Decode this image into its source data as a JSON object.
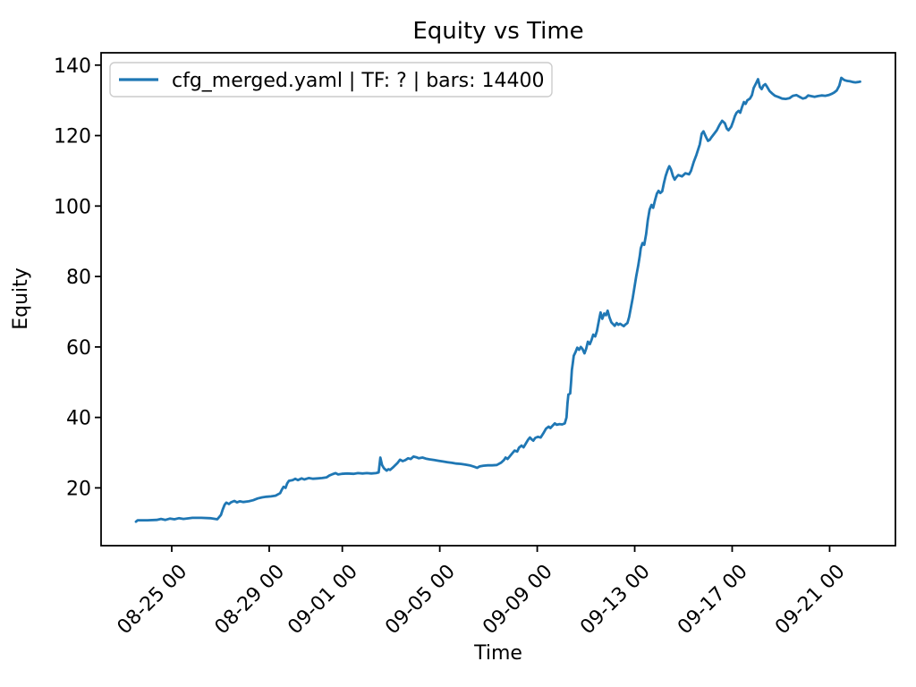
{
  "figure": {
    "title": "Equity vs Time",
    "xlabel": "Time",
    "ylabel": "Equity"
  },
  "legend": {
    "label": "cfg_merged.yaml | TF: ? | bars: 14400",
    "position": "upper left",
    "line_color": "#1f77b4",
    "border_color": "#cccccc",
    "background": "#ffffff"
  },
  "colors": {
    "line": "#1f77b4",
    "axes": "#000000",
    "figure_background": "#ffffff"
  },
  "chart_data": {
    "type": "line",
    "title": "Equity vs Time",
    "xlabel": "Time",
    "ylabel": "Equity",
    "grid": false,
    "legend_position": "upper left",
    "x_units": "days (0 = 08-23 00:00)",
    "xlim": [
      -0.9,
      31.7
    ],
    "ylim": [
      3.6,
      143.5
    ],
    "y_ticks": [
      20,
      40,
      60,
      80,
      100,
      120,
      140
    ],
    "x_ticks": [
      {
        "t": 2,
        "label": "08-25 00"
      },
      {
        "t": 6,
        "label": "08-29 00"
      },
      {
        "t": 9,
        "label": "09-01 00"
      },
      {
        "t": 13,
        "label": "09-05 00"
      },
      {
        "t": 17,
        "label": "09-09 00"
      },
      {
        "t": 21,
        "label": "09-13 00"
      },
      {
        "t": 25,
        "label": "09-17 00"
      },
      {
        "t": 29,
        "label": "09-21 00"
      }
    ],
    "series": [
      {
        "name": "cfg_merged.yaml | TF: ? | bars: 14400",
        "color": "#1f77b4",
        "points": [
          [
            0.53,
            10.4
          ],
          [
            0.6,
            10.8
          ],
          [
            1.0,
            10.8
          ],
          [
            1.38,
            10.9
          ],
          [
            1.56,
            11.2
          ],
          [
            1.74,
            10.9
          ],
          [
            1.93,
            11.3
          ],
          [
            2.11,
            11.1
          ],
          [
            2.29,
            11.4
          ],
          [
            2.48,
            11.2
          ],
          [
            2.85,
            11.5
          ],
          [
            3.21,
            11.5
          ],
          [
            3.58,
            11.4
          ],
          [
            3.87,
            11.1
          ],
          [
            4.02,
            12.3
          ],
          [
            4.09,
            13.8
          ],
          [
            4.17,
            15.2
          ],
          [
            4.24,
            15.8
          ],
          [
            4.35,
            15.4
          ],
          [
            4.43,
            15.9
          ],
          [
            4.57,
            16.3
          ],
          [
            4.68,
            15.9
          ],
          [
            4.79,
            16.2
          ],
          [
            4.94,
            16.0
          ],
          [
            5.16,
            16.2
          ],
          [
            5.34,
            16.5
          ],
          [
            5.53,
            17.0
          ],
          [
            5.71,
            17.3
          ],
          [
            5.89,
            17.5
          ],
          [
            6.08,
            17.6
          ],
          [
            6.26,
            17.8
          ],
          [
            6.45,
            18.5
          ],
          [
            6.52,
            19.5
          ],
          [
            6.59,
            20.3
          ],
          [
            6.67,
            20.0
          ],
          [
            6.74,
            21.3
          ],
          [
            6.81,
            22.0
          ],
          [
            6.96,
            22.2
          ],
          [
            7.07,
            22.6
          ],
          [
            7.18,
            22.2
          ],
          [
            7.33,
            22.7
          ],
          [
            7.44,
            22.4
          ],
          [
            7.62,
            22.8
          ],
          [
            7.8,
            22.6
          ],
          [
            7.99,
            22.7
          ],
          [
            8.17,
            22.8
          ],
          [
            8.36,
            23.0
          ],
          [
            8.47,
            23.5
          ],
          [
            8.61,
            23.9
          ],
          [
            8.72,
            24.2
          ],
          [
            8.83,
            23.8
          ],
          [
            8.98,
            24.0
          ],
          [
            9.2,
            24.1
          ],
          [
            9.46,
            24.0
          ],
          [
            9.64,
            24.2
          ],
          [
            9.83,
            24.1
          ],
          [
            10.01,
            24.2
          ],
          [
            10.19,
            24.1
          ],
          [
            10.38,
            24.2
          ],
          [
            10.49,
            24.4
          ],
          [
            10.56,
            28.6
          ],
          [
            10.63,
            26.5
          ],
          [
            10.71,
            25.6
          ],
          [
            10.82,
            24.9
          ],
          [
            10.89,
            25.3
          ],
          [
            10.96,
            25.1
          ],
          [
            11.11,
            26.0
          ],
          [
            11.26,
            27.0
          ],
          [
            11.37,
            28.0
          ],
          [
            11.48,
            27.6
          ],
          [
            11.59,
            27.9
          ],
          [
            11.7,
            28.4
          ],
          [
            11.81,
            28.2
          ],
          [
            11.92,
            28.9
          ],
          [
            12.03,
            28.7
          ],
          [
            12.14,
            28.4
          ],
          [
            12.29,
            28.6
          ],
          [
            12.43,
            28.3
          ],
          [
            12.58,
            28.1
          ],
          [
            12.77,
            27.9
          ],
          [
            12.95,
            27.7
          ],
          [
            13.13,
            27.5
          ],
          [
            13.32,
            27.3
          ],
          [
            13.5,
            27.1
          ],
          [
            13.68,
            26.9
          ],
          [
            13.87,
            26.8
          ],
          [
            14.05,
            26.6
          ],
          [
            14.23,
            26.4
          ],
          [
            14.42,
            26.0
          ],
          [
            14.53,
            25.7
          ],
          [
            14.64,
            26.1
          ],
          [
            14.79,
            26.3
          ],
          [
            14.97,
            26.4
          ],
          [
            15.15,
            26.4
          ],
          [
            15.34,
            26.5
          ],
          [
            15.52,
            27.2
          ],
          [
            15.63,
            27.9
          ],
          [
            15.7,
            28.6
          ],
          [
            15.78,
            28.2
          ],
          [
            15.89,
            29.1
          ],
          [
            16.0,
            30.0
          ],
          [
            16.07,
            30.6
          ],
          [
            16.18,
            30.3
          ],
          [
            16.25,
            31.4
          ],
          [
            16.36,
            32.0
          ],
          [
            16.44,
            31.5
          ],
          [
            16.55,
            32.8
          ],
          [
            16.62,
            33.6
          ],
          [
            16.7,
            34.3
          ],
          [
            16.77,
            33.8
          ],
          [
            16.84,
            33.4
          ],
          [
            16.92,
            34.2
          ],
          [
            17.03,
            34.5
          ],
          [
            17.14,
            34.3
          ],
          [
            17.25,
            35.5
          ],
          [
            17.36,
            36.8
          ],
          [
            17.47,
            37.4
          ],
          [
            17.54,
            37.0
          ],
          [
            17.65,
            37.8
          ],
          [
            17.72,
            38.3
          ],
          [
            17.8,
            37.9
          ],
          [
            17.91,
            38.1
          ],
          [
            18.02,
            38.0
          ],
          [
            18.13,
            38.3
          ],
          [
            18.2,
            40.0
          ],
          [
            18.24,
            44.0
          ],
          [
            18.28,
            46.5
          ],
          [
            18.35,
            46.8
          ],
          [
            18.39,
            50.0
          ],
          [
            18.42,
            53.5
          ],
          [
            18.46,
            55.5
          ],
          [
            18.5,
            57.5
          ],
          [
            18.57,
            58.5
          ],
          [
            18.64,
            59.8
          ],
          [
            18.72,
            59.2
          ],
          [
            18.79,
            60.0
          ],
          [
            18.86,
            59.4
          ],
          [
            18.94,
            58.2
          ],
          [
            19.01,
            59.5
          ],
          [
            19.08,
            61.5
          ],
          [
            19.16,
            60.8
          ],
          [
            19.23,
            62.0
          ],
          [
            19.3,
            63.5
          ],
          [
            19.38,
            63.0
          ],
          [
            19.45,
            64.5
          ],
          [
            19.49,
            66.0
          ],
          [
            19.56,
            68.5
          ],
          [
            19.6,
            69.8
          ],
          [
            19.67,
            68.0
          ],
          [
            19.75,
            69.5
          ],
          [
            19.82,
            69.0
          ],
          [
            19.89,
            70.3
          ],
          [
            19.96,
            68.5
          ],
          [
            20.04,
            67.0
          ],
          [
            20.11,
            66.5
          ],
          [
            20.18,
            66.0
          ],
          [
            20.26,
            66.8
          ],
          [
            20.33,
            66.3
          ],
          [
            20.4,
            66.6
          ],
          [
            20.48,
            66.2
          ],
          [
            20.55,
            65.9
          ],
          [
            20.62,
            66.4
          ],
          [
            20.7,
            66.8
          ],
          [
            20.77,
            68.5
          ],
          [
            20.84,
            71.0
          ],
          [
            20.92,
            74.0
          ],
          [
            20.99,
            77.0
          ],
          [
            21.06,
            80.0
          ],
          [
            21.14,
            83.0
          ],
          [
            21.21,
            86.0
          ],
          [
            21.25,
            88.0
          ],
          [
            21.32,
            89.5
          ],
          [
            21.39,
            89.0
          ],
          [
            21.47,
            92.0
          ],
          [
            21.54,
            96.0
          ],
          [
            21.61,
            99.0
          ],
          [
            21.69,
            100.3
          ],
          [
            21.76,
            99.5
          ],
          [
            21.83,
            101.5
          ],
          [
            21.91,
            103.5
          ],
          [
            21.98,
            104.3
          ],
          [
            22.05,
            103.7
          ],
          [
            22.13,
            104.2
          ],
          [
            22.2,
            106.5
          ],
          [
            22.27,
            108.5
          ],
          [
            22.35,
            110.2
          ],
          [
            22.42,
            111.3
          ],
          [
            22.49,
            110.4
          ],
          [
            22.57,
            108.5
          ],
          [
            22.64,
            107.5
          ],
          [
            22.71,
            108.2
          ],
          [
            22.79,
            108.8
          ],
          [
            22.94,
            108.4
          ],
          [
            23.08,
            109.3
          ],
          [
            23.23,
            109.0
          ],
          [
            23.31,
            110.0
          ],
          [
            23.42,
            112.5
          ],
          [
            23.53,
            114.5
          ],
          [
            23.6,
            116.0
          ],
          [
            23.67,
            117.5
          ],
          [
            23.75,
            120.5
          ],
          [
            23.82,
            121.2
          ],
          [
            23.93,
            119.5
          ],
          [
            24.01,
            118.5
          ],
          [
            24.08,
            118.8
          ],
          [
            24.15,
            119.5
          ],
          [
            24.26,
            120.5
          ],
          [
            24.37,
            121.5
          ],
          [
            24.48,
            123.0
          ],
          [
            24.59,
            124.2
          ],
          [
            24.7,
            123.5
          ],
          [
            24.78,
            122.0
          ],
          [
            24.85,
            121.5
          ],
          [
            24.96,
            122.5
          ],
          [
            25.04,
            124.0
          ],
          [
            25.11,
            125.5
          ],
          [
            25.18,
            126.5
          ],
          [
            25.26,
            127.0
          ],
          [
            25.33,
            126.5
          ],
          [
            25.4,
            128.0
          ],
          [
            25.48,
            129.5
          ],
          [
            25.55,
            129.0
          ],
          [
            25.62,
            130.0
          ],
          [
            25.73,
            130.5
          ],
          [
            25.81,
            131.5
          ],
          [
            25.88,
            133.5
          ],
          [
            25.99,
            135.0
          ],
          [
            26.06,
            136.0
          ],
          [
            26.14,
            133.8
          ],
          [
            26.21,
            133.2
          ],
          [
            26.28,
            134.2
          ],
          [
            26.36,
            134.6
          ],
          [
            26.43,
            133.9
          ],
          [
            26.54,
            132.6
          ],
          [
            26.65,
            131.9
          ],
          [
            26.76,
            131.3
          ],
          [
            26.91,
            130.9
          ],
          [
            27.05,
            130.5
          ],
          [
            27.2,
            130.4
          ],
          [
            27.35,
            130.6
          ],
          [
            27.49,
            131.3
          ],
          [
            27.64,
            131.5
          ],
          [
            27.79,
            130.9
          ],
          [
            27.9,
            130.5
          ],
          [
            28.01,
            130.7
          ],
          [
            28.12,
            131.4
          ],
          [
            28.23,
            131.2
          ],
          [
            28.38,
            131.0
          ],
          [
            28.52,
            131.2
          ],
          [
            28.67,
            131.4
          ],
          [
            28.82,
            131.3
          ],
          [
            28.96,
            131.5
          ],
          [
            29.07,
            131.8
          ],
          [
            29.18,
            132.2
          ],
          [
            29.29,
            132.8
          ],
          [
            29.4,
            134.2
          ],
          [
            29.48,
            136.4
          ],
          [
            29.55,
            136.0
          ],
          [
            29.62,
            135.7
          ],
          [
            29.73,
            135.5
          ],
          [
            29.84,
            135.4
          ],
          [
            29.95,
            135.2
          ],
          [
            30.06,
            135.1
          ],
          [
            30.17,
            135.2
          ],
          [
            30.25,
            135.3
          ]
        ]
      }
    ]
  }
}
